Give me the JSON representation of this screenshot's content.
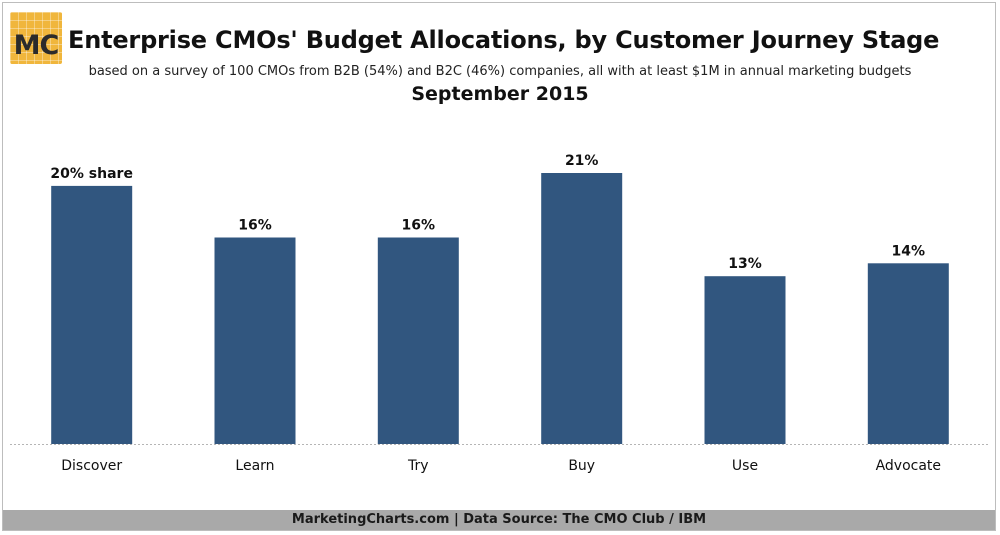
{
  "logo": {
    "text": "MC",
    "color": "#f0b63c"
  },
  "header": {
    "title": "Enterprise CMOs' Budget Allocations, by Customer Journey Stage",
    "subtitle": "based on a survey of 100 CMOs from B2B (54%) and B2C (46%) companies, all with at least $1M in annual marketing budgets",
    "date": "September 2015"
  },
  "footer": {
    "text": "MarketingCharts.com | Data Source: The CMO Club / IBM"
  },
  "chart_data": {
    "type": "bar",
    "categories": [
      "Discover",
      "Learn",
      "Try",
      "Buy",
      "Use",
      "Advocate"
    ],
    "values": [
      20,
      16,
      16,
      21,
      13,
      14
    ],
    "data_labels": [
      "20% share",
      "16%",
      "16%",
      "21%",
      "13%",
      "14%"
    ],
    "title": "Enterprise CMOs' Budget Allocations, by Customer Journey Stage",
    "xlabel": "",
    "ylabel": "",
    "ylim": [
      0,
      21
    ],
    "grid": false,
    "bar_color": "#31567f"
  }
}
